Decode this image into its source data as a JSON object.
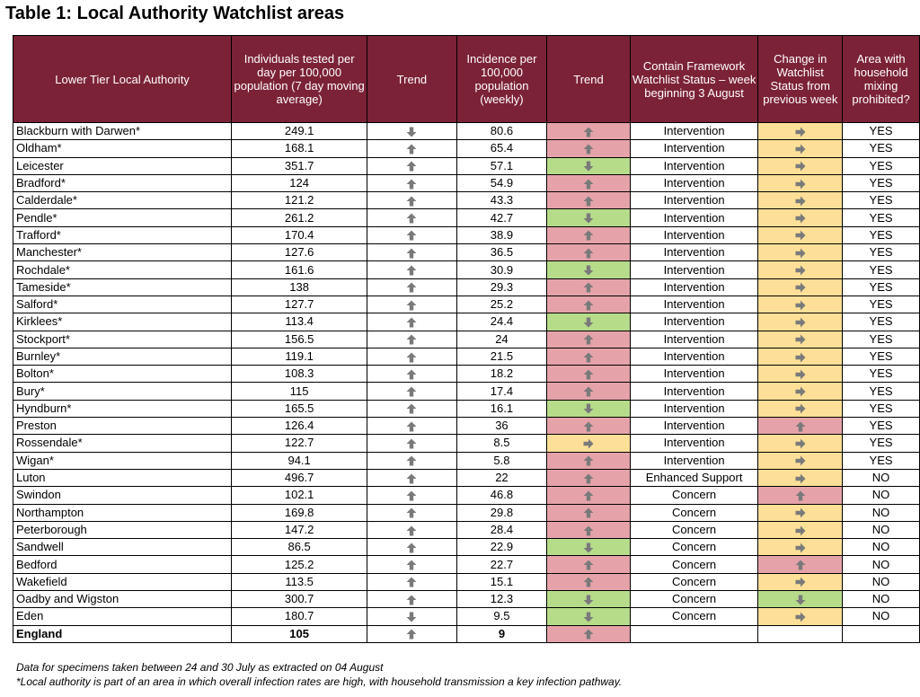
{
  "title": "Table 1: Local Authority Watchlist areas",
  "headers": {
    "la": "Lower Tier Local Authority",
    "tested": "Individuals tested per day per 100,000 population (7 day moving average)",
    "trend1": "Trend",
    "incidence": "Incidence per 100,000 population (weekly)",
    "trend2": "Trend",
    "status": "Contain Framework Watchlist Status – week beginning 3 August",
    "change": "Change in Watchlist Status from previous week",
    "mixing": "Area with household mixing prohibited?"
  },
  "colors": {
    "header": "#7b2236",
    "red": "#e5a3a9",
    "green": "#b6dc8a",
    "amber": "#fddf97"
  },
  "rows": [
    {
      "la": "Blackburn with Darwen*",
      "tested": "249.1",
      "t1": "down",
      "inc": "80.6",
      "t2": "up",
      "t2c": "red",
      "status": "Intervention",
      "chg": "right",
      "chgc": "amber",
      "mix": "YES"
    },
    {
      "la": "Oldham*",
      "tested": "168.1",
      "t1": "up",
      "inc": "65.4",
      "t2": "up",
      "t2c": "red",
      "status": "Intervention",
      "chg": "right",
      "chgc": "amber",
      "mix": "YES"
    },
    {
      "la": "Leicester",
      "tested": "351.7",
      "t1": "up",
      "inc": "57.1",
      "t2": "down",
      "t2c": "green",
      "status": "Intervention",
      "chg": "right",
      "chgc": "amber",
      "mix": "YES"
    },
    {
      "la": "Bradford*",
      "tested": "124",
      "t1": "up",
      "inc": "54.9",
      "t2": "up",
      "t2c": "red",
      "status": "Intervention",
      "chg": "right",
      "chgc": "amber",
      "mix": "YES"
    },
    {
      "la": "Calderdale*",
      "tested": "121.2",
      "t1": "up",
      "inc": "43.3",
      "t2": "up",
      "t2c": "red",
      "status": "Intervention",
      "chg": "right",
      "chgc": "amber",
      "mix": "YES"
    },
    {
      "la": "Pendle*",
      "tested": "261.2",
      "t1": "up",
      "inc": "42.7",
      "t2": "down",
      "t2c": "green",
      "status": "Intervention",
      "chg": "right",
      "chgc": "amber",
      "mix": "YES"
    },
    {
      "la": "Trafford*",
      "tested": "170.4",
      "t1": "up",
      "inc": "38.9",
      "t2": "up",
      "t2c": "red",
      "status": "Intervention",
      "chg": "right",
      "chgc": "amber",
      "mix": "YES"
    },
    {
      "la": "Manchester*",
      "tested": "127.6",
      "t1": "up",
      "inc": "36.5",
      "t2": "up",
      "t2c": "red",
      "status": "Intervention",
      "chg": "right",
      "chgc": "amber",
      "mix": "YES"
    },
    {
      "la": "Rochdale*",
      "tested": "161.6",
      "t1": "up",
      "inc": "30.9",
      "t2": "down",
      "t2c": "green",
      "status": "Intervention",
      "chg": "right",
      "chgc": "amber",
      "mix": "YES"
    },
    {
      "la": "Tameside*",
      "tested": "138",
      "t1": "up",
      "inc": "29.3",
      "t2": "up",
      "t2c": "red",
      "status": "Intervention",
      "chg": "right",
      "chgc": "amber",
      "mix": "YES"
    },
    {
      "la": "Salford*",
      "tested": "127.7",
      "t1": "up",
      "inc": "25.2",
      "t2": "up",
      "t2c": "red",
      "status": "Intervention",
      "chg": "right",
      "chgc": "amber",
      "mix": "YES"
    },
    {
      "la": "Kirklees*",
      "tested": "113.4",
      "t1": "up",
      "inc": "24.4",
      "t2": "down",
      "t2c": "green",
      "status": "Intervention",
      "chg": "right",
      "chgc": "amber",
      "mix": "YES"
    },
    {
      "la": "Stockport*",
      "tested": "156.5",
      "t1": "up",
      "inc": "24",
      "t2": "up",
      "t2c": "red",
      "status": "Intervention",
      "chg": "right",
      "chgc": "amber",
      "mix": "YES"
    },
    {
      "la": "Burnley*",
      "tested": "119.1",
      "t1": "up",
      "inc": "21.5",
      "t2": "up",
      "t2c": "red",
      "status": "Intervention",
      "chg": "right",
      "chgc": "amber",
      "mix": "YES"
    },
    {
      "la": "Bolton*",
      "tested": "108.3",
      "t1": "up",
      "inc": "18.2",
      "t2": "up",
      "t2c": "red",
      "status": "Intervention",
      "chg": "right",
      "chgc": "amber",
      "mix": "YES"
    },
    {
      "la": "Bury*",
      "tested": "115",
      "t1": "up",
      "inc": "17.4",
      "t2": "up",
      "t2c": "red",
      "status": "Intervention",
      "chg": "right",
      "chgc": "amber",
      "mix": "YES"
    },
    {
      "la": "Hyndburn*",
      "tested": "165.5",
      "t1": "up",
      "inc": "16.1",
      "t2": "down",
      "t2c": "green",
      "status": "Intervention",
      "chg": "right",
      "chgc": "amber",
      "mix": "YES"
    },
    {
      "la": "Preston",
      "tested": "126.4",
      "t1": "up",
      "inc": "36",
      "t2": "up",
      "t2c": "red",
      "status": "Intervention",
      "chg": "up",
      "chgc": "red",
      "mix": "YES"
    },
    {
      "la": "Rossendale*",
      "tested": "122.7",
      "t1": "up",
      "inc": "8.5",
      "t2": "right",
      "t2c": "amber",
      "status": "Intervention",
      "chg": "right",
      "chgc": "amber",
      "mix": "YES"
    },
    {
      "la": "Wigan*",
      "tested": "94.1",
      "t1": "up",
      "inc": "5.8",
      "t2": "up",
      "t2c": "red",
      "status": "Intervention",
      "chg": "right",
      "chgc": "amber",
      "mix": "YES"
    },
    {
      "la": "Luton",
      "tested": "496.7",
      "t1": "up",
      "inc": "22",
      "t2": "up",
      "t2c": "red",
      "status": "Enhanced Support",
      "chg": "right",
      "chgc": "amber",
      "mix": "NO"
    },
    {
      "la": "Swindon",
      "tested": "102.1",
      "t1": "up",
      "inc": "46.8",
      "t2": "up",
      "t2c": "red",
      "status": "Concern",
      "chg": "up",
      "chgc": "red",
      "mix": "NO"
    },
    {
      "la": "Northampton",
      "tested": "169.8",
      "t1": "up",
      "inc": "29.8",
      "t2": "up",
      "t2c": "red",
      "status": "Concern",
      "chg": "right",
      "chgc": "amber",
      "mix": "NO"
    },
    {
      "la": "Peterborough",
      "tested": "147.2",
      "t1": "up",
      "inc": "28.4",
      "t2": "up",
      "t2c": "red",
      "status": "Concern",
      "chg": "right",
      "chgc": "amber",
      "mix": "NO"
    },
    {
      "la": "Sandwell",
      "tested": "86.5",
      "t1": "up",
      "inc": "22.9",
      "t2": "down",
      "t2c": "green",
      "status": "Concern",
      "chg": "right",
      "chgc": "amber",
      "mix": "NO"
    },
    {
      "la": "Bedford",
      "tested": "125.2",
      "t1": "up",
      "inc": "22.7",
      "t2": "up",
      "t2c": "red",
      "status": "Concern",
      "chg": "up",
      "chgc": "red",
      "mix": "NO"
    },
    {
      "la": "Wakefield",
      "tested": "113.5",
      "t1": "up",
      "inc": "15.1",
      "t2": "up",
      "t2c": "red",
      "status": "Concern",
      "chg": "right",
      "chgc": "amber",
      "mix": "NO"
    },
    {
      "la": "Oadby and Wigston",
      "tested": "300.7",
      "t1": "up",
      "inc": "12.3",
      "t2": "down",
      "t2c": "green",
      "status": "Concern",
      "chg": "down",
      "chgc": "green",
      "mix": "NO"
    },
    {
      "la": "Eden",
      "tested": "180.7",
      "t1": "down",
      "inc": "9.5",
      "t2": "down",
      "t2c": "green",
      "status": "Concern",
      "chg": "right",
      "chgc": "amber",
      "mix": "NO"
    }
  ],
  "total": {
    "la": "England",
    "tested": "105",
    "t1": "up",
    "inc": "9",
    "t2": "up",
    "t2c": "red"
  },
  "notes": {
    "line1": "Data for specimens taken between 24 and 30 July as extracted on 04 August",
    "line2": "*Local authority is part of an area in which overall infection rates are high, with household transmission a key infection pathway."
  }
}
